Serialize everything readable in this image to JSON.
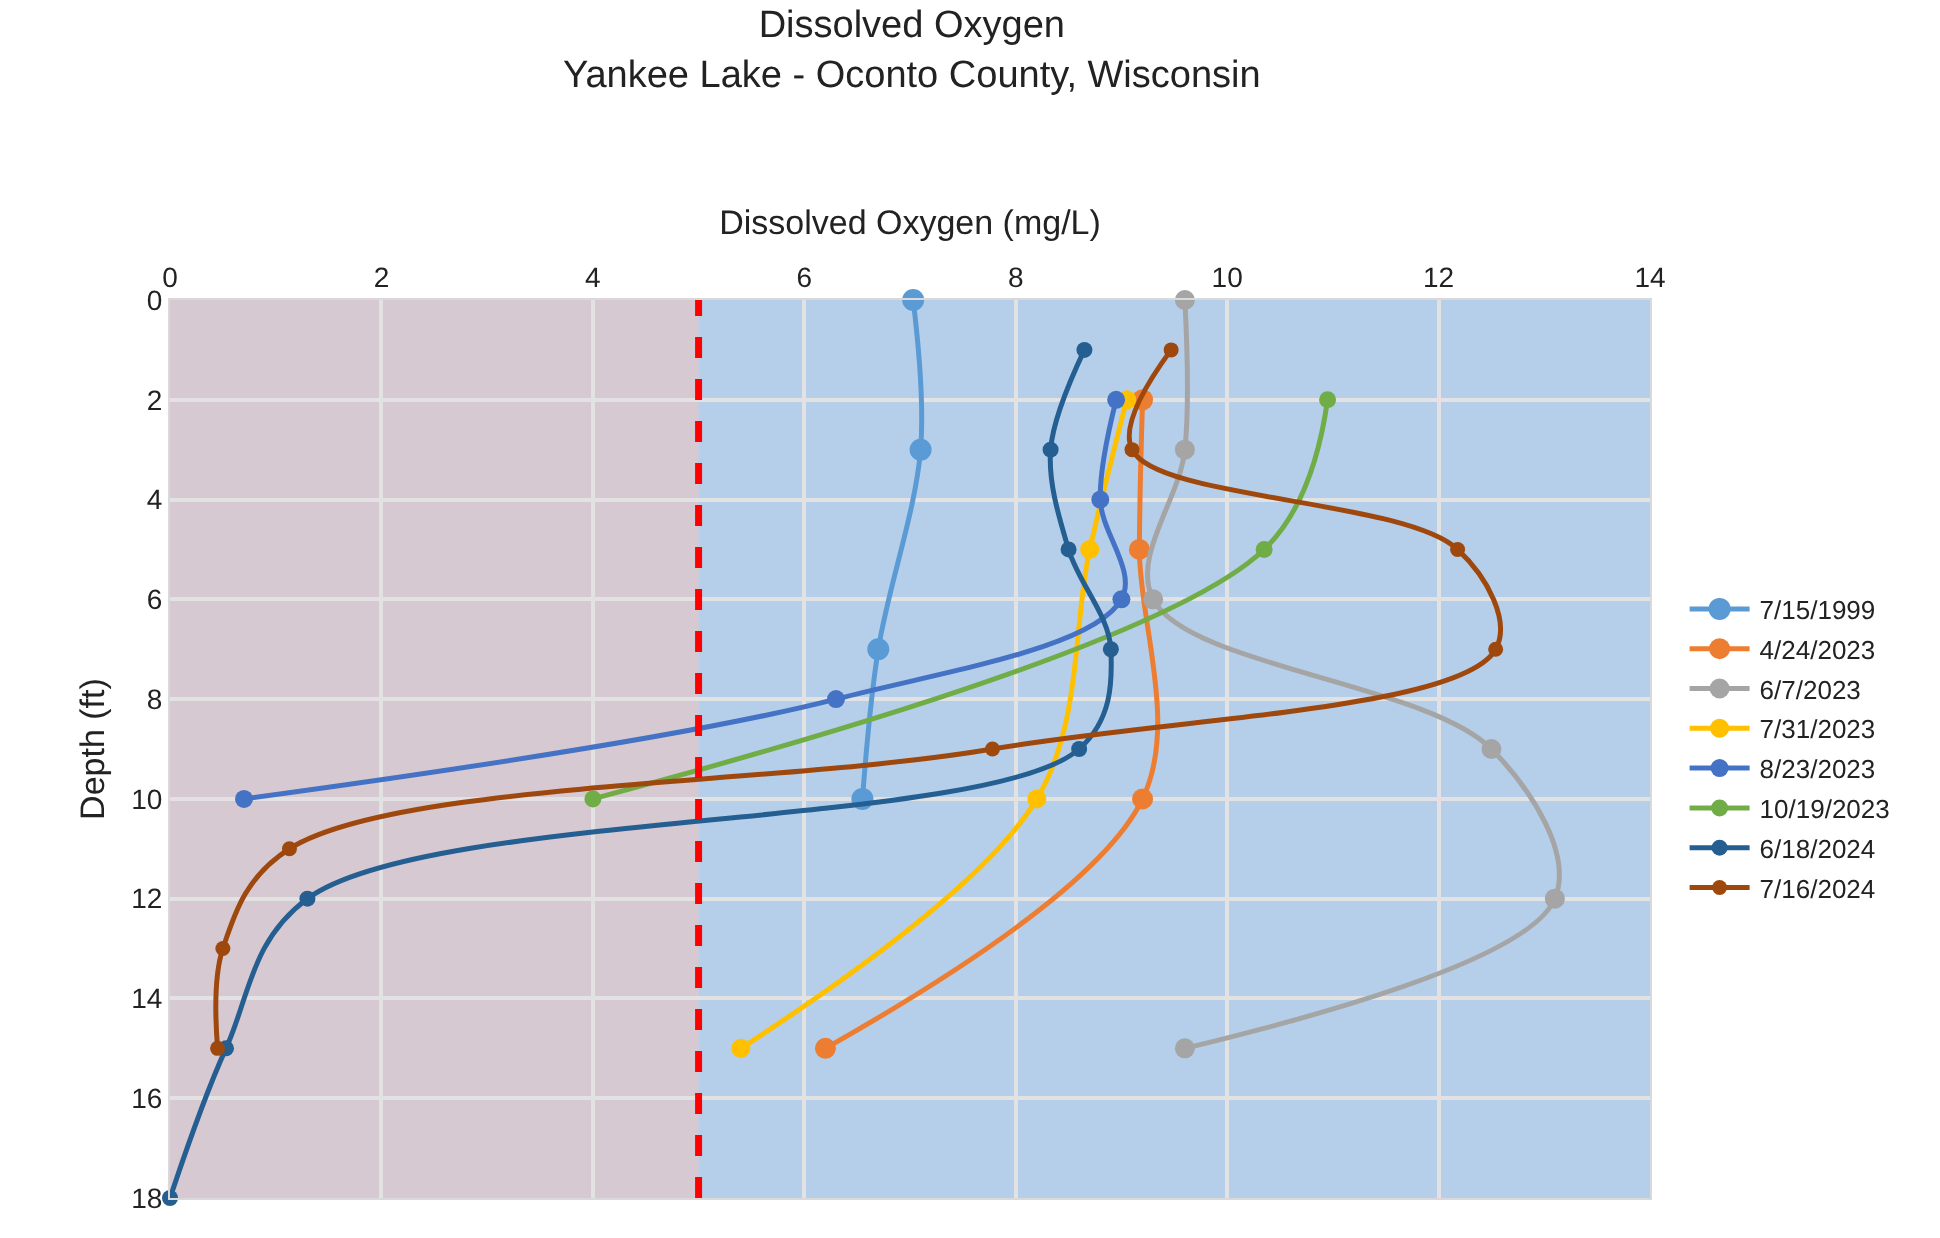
{
  "chart_data": {
    "type": "line",
    "title": "Dissolved Oxygen",
    "subtitle": "Yankee Lake - Oconto County, Wisconsin",
    "xlabel": "Dissolved Oxygen (mg/L)",
    "ylabel": "Depth (ft)",
    "xlim": [
      0,
      14
    ],
    "xticks": [
      0,
      2,
      4,
      6,
      8,
      10,
      12,
      14
    ],
    "ylim": [
      18,
      0
    ],
    "yticks": [
      0,
      2,
      4,
      6,
      8,
      10,
      12,
      14,
      16,
      18
    ],
    "grid": true,
    "legend": "right",
    "marker": "circle",
    "line_style": "solid",
    "bands": [
      {
        "axis": "x",
        "from": 0,
        "to": 5,
        "color": "#f2c4bc"
      }
    ],
    "ref_lines": [
      {
        "axis": "x",
        "value": 5,
        "color": "#ff0000",
        "line_style": "dashed"
      }
    ],
    "series": [
      {
        "name": "7/15/1999",
        "color": "#5b9bd5",
        "x": [
          7.03,
          7.1,
          6.7,
          6.55
        ],
        "values": [
          0,
          3,
          7,
          10
        ]
      },
      {
        "name": "4/24/2023",
        "color": "#ed7d31",
        "x": [
          9.2,
          9.17,
          9.2,
          6.2
        ],
        "values": [
          2,
          5,
          10,
          15
        ]
      },
      {
        "name": "6/7/2023",
        "color": "#a5a5a5",
        "x": [
          9.6,
          9.6,
          9.3,
          12.5,
          13.1,
          9.6
        ],
        "values": [
          0,
          3,
          6,
          9,
          12,
          15
        ]
      },
      {
        "name": "7/31/2023",
        "color": "#ffc000",
        "x": [
          9.05,
          8.7,
          8.2,
          5.4
        ],
        "values": [
          2,
          5,
          10,
          15
        ]
      },
      {
        "name": "8/23/2023",
        "color": "#4472c4",
        "x": [
          8.95,
          8.8,
          9.0,
          6.3,
          0.7
        ],
        "values": [
          2,
          4,
          6,
          8,
          10
        ]
      },
      {
        "name": "10/19/2023",
        "color": "#70ad47",
        "x": [
          10.95,
          10.35,
          4.0
        ],
        "values": [
          2,
          5,
          10
        ]
      },
      {
        "name": "6/18/2024",
        "color": "#255e91",
        "x": [
          8.65,
          8.33,
          8.5,
          8.9,
          8.6,
          1.3,
          0.53,
          0
        ],
        "values": [
          1,
          3,
          5,
          7,
          9,
          12,
          15,
          18
        ]
      },
      {
        "name": "7/16/2024",
        "color": "#9e480e",
        "x": [
          9.47,
          9.1,
          12.18,
          12.54,
          7.78,
          1.13,
          0.5,
          0.45
        ],
        "values": [
          1,
          3,
          5,
          7,
          9,
          11,
          13,
          15
        ]
      }
    ]
  }
}
